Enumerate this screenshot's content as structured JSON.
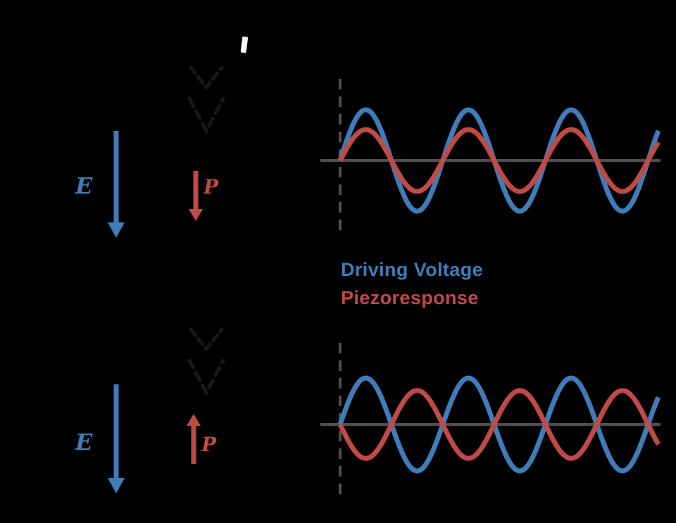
{
  "figure": {
    "background": "#000000",
    "colors": {
      "driving_voltage": "#3f7cb9",
      "piezoresponse": "#c04a46",
      "axis_gray": "#4f4f4f",
      "dashed_dark": "#191919",
      "white_mark": "#f5f5f5"
    },
    "labels": {
      "field_top": "E",
      "polarization_top": "P",
      "field_bottom": "E",
      "polarization_bottom": "P"
    },
    "legend": {
      "driving_voltage": "Driving Voltage",
      "piezoresponse": "Piezoresponse"
    }
  },
  "chart_data": [
    {
      "type": "line",
      "panel": "top",
      "cycles": 3.1,
      "baseline": 0,
      "grid": false,
      "x_axis": "time (unlabeled)",
      "series": [
        {
          "name": "Driving Voltage",
          "amplitude": 1.0,
          "phase_deg": 0,
          "color_key": "driving_voltage"
        },
        {
          "name": "Piezoresponse",
          "amplitude": 0.61,
          "phase_deg": 0,
          "color_key": "piezoresponse"
        }
      ]
    },
    {
      "type": "line",
      "panel": "bottom",
      "cycles": 3.1,
      "baseline": 0,
      "grid": false,
      "x_axis": "time (unlabeled)",
      "series": [
        {
          "name": "Driving Voltage",
          "amplitude": 1.0,
          "phase_deg": 0,
          "color_key": "driving_voltage"
        },
        {
          "name": "Piezoresponse",
          "amplitude": 0.73,
          "phase_deg": 180,
          "color_key": "piezoresponse"
        }
      ]
    }
  ]
}
